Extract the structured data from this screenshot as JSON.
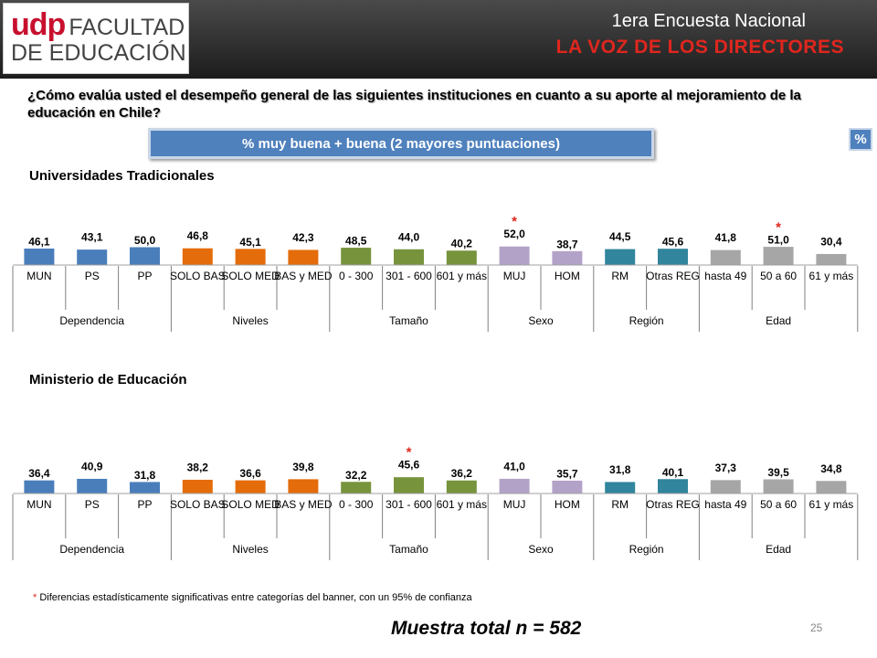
{
  "header": {
    "logo_udp": "udp",
    "logo_line1": "FACULTAD",
    "logo_line2": "DE EDUCACIÓN",
    "title": "1era Encuesta Nacional",
    "subtitle": "LA VOZ DE LOS DIRECTORES"
  },
  "question": "¿Cómo evalúa usted el desempeño general de las siguientes instituciones en cuanto a su aporte al mejoramiento de la educación en Chile?",
  "measure_label": "% muy buena + buena (2 mayores puntuaciones)",
  "percent_badge": "%",
  "footnote_star": "*",
  "footnote_text": " Diferencias estadísticamente significativas entre categorías del banner, con un 95% de confianza",
  "sample_text": "Muestra total n = 582",
  "page_number": "25",
  "colors": {
    "Dependencia": "#4a7ebb",
    "Niveles": "#e46c0a",
    "Tamaño": "#77933c",
    "Sexo": "#b3a2c7",
    "Región": "#31859c",
    "Edad": "#a6a6a6",
    "star": "#e0261e"
  },
  "chart_data": [
    {
      "type": "bar",
      "title": "Universidades Tradicionales",
      "categories": [
        "MUN",
        "PS",
        "PP",
        "SOLO BAS",
        "SOLO MED",
        "BAS y MED",
        "0 - 300",
        "301 - 600",
        "601 y más",
        "MUJ",
        "HOM",
        "RM",
        "Otras REG",
        "hasta 49",
        "50 a 60",
        "61 y más"
      ],
      "values": [
        46.1,
        43.1,
        50.0,
        46.8,
        45.1,
        42.3,
        48.5,
        44.0,
        40.2,
        52.0,
        38.7,
        44.5,
        45.6,
        41.8,
        51.0,
        30.4
      ],
      "value_labels": [
        "46,1",
        "43,1",
        "50,0",
        "46,8",
        "45,1",
        "42,3",
        "48,5",
        "44,0",
        "40,2",
        "52,0",
        "38,7",
        "44,5",
        "45,6",
        "41,8",
        "51,0",
        "30,4"
      ],
      "groups": [
        "Dependencia",
        "Dependencia",
        "Dependencia",
        "Niveles",
        "Niveles",
        "Niveles",
        "Tamaño",
        "Tamaño",
        "Tamaño",
        "Sexo",
        "Sexo",
        "Región",
        "Región",
        "Edad",
        "Edad",
        "Edad"
      ],
      "significant": [
        false,
        false,
        false,
        false,
        false,
        false,
        false,
        false,
        false,
        true,
        false,
        false,
        false,
        false,
        true,
        false
      ]
    },
    {
      "type": "bar",
      "title": "Ministerio de Educación",
      "categories": [
        "MUN",
        "PS",
        "PP",
        "SOLO BAS",
        "SOLO MED",
        "BAS y MED",
        "0 - 300",
        "301 - 600",
        "601 y más",
        "MUJ",
        "HOM",
        "RM",
        "Otras REG",
        "hasta 49",
        "50 a 60",
        "61 y más"
      ],
      "values": [
        36.4,
        40.9,
        31.8,
        38.2,
        36.6,
        39.8,
        32.2,
        45.6,
        36.2,
        41.0,
        35.7,
        31.8,
        40.1,
        37.3,
        39.5,
        34.8
      ],
      "value_labels": [
        "36,4",
        "40,9",
        "31,8",
        "38,2",
        "36,6",
        "39,8",
        "32,2",
        "45,6",
        "36,2",
        "41,0",
        "35,7",
        "31,8",
        "40,1",
        "37,3",
        "39,5",
        "34,8"
      ],
      "groups": [
        "Dependencia",
        "Dependencia",
        "Dependencia",
        "Niveles",
        "Niveles",
        "Niveles",
        "Tamaño",
        "Tamaño",
        "Tamaño",
        "Sexo",
        "Sexo",
        "Región",
        "Región",
        "Edad",
        "Edad",
        "Edad"
      ],
      "significant": [
        false,
        false,
        false,
        false,
        false,
        false,
        false,
        true,
        false,
        false,
        false,
        false,
        false,
        false,
        false,
        false
      ]
    }
  ]
}
